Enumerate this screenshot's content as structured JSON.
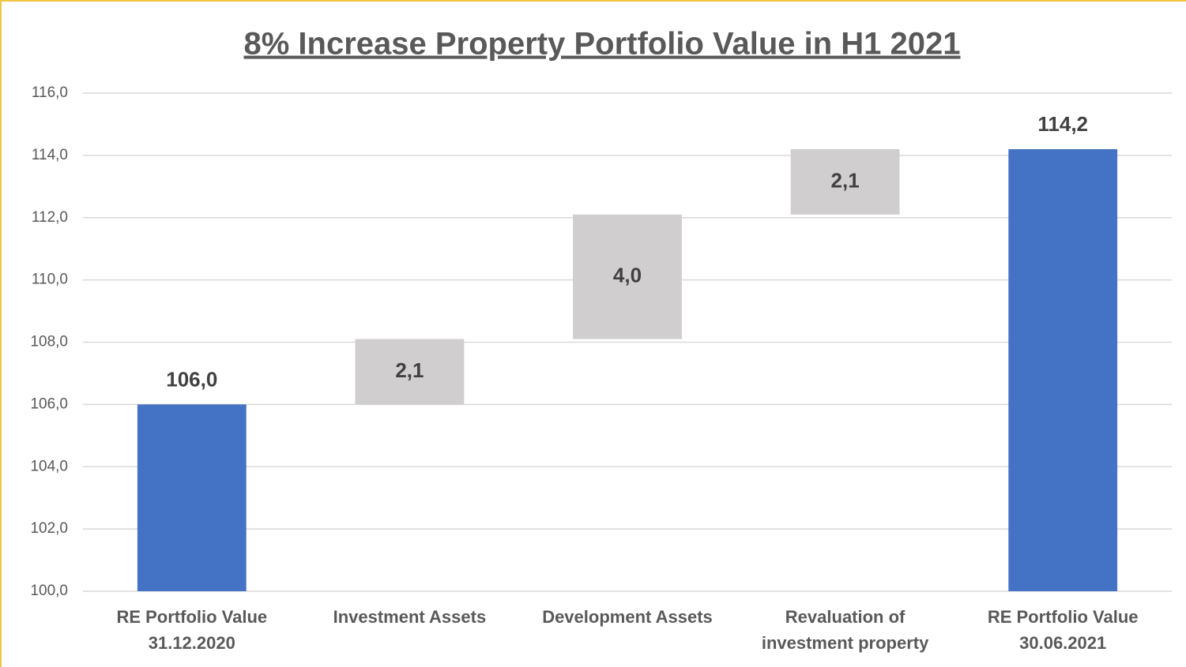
{
  "chart_data": {
    "type": "waterfall",
    "title": "8% Increase Property Portfolio Value in H1 2021",
    "categories": [
      "RE Portfolio Value 31.12.2020",
      "Investment Assets",
      "Development Assets",
      "Revaluation of investment property",
      "RE Portfolio Value 30.06.2021"
    ],
    "values": [
      106.0,
      2.1,
      4.0,
      2.1,
      114.2
    ],
    "value_labels": [
      "106,0",
      "2,1",
      "4,0",
      "2,1",
      "114,2"
    ],
    "totals": [
      true,
      false,
      false,
      false,
      true
    ],
    "total_color": "#4472c4",
    "increase_color": "#d0cece",
    "ylim": [
      100,
      116
    ],
    "yticks": [
      {
        "value": 100,
        "label": "100,0"
      },
      {
        "value": 102,
        "label": "102,0"
      },
      {
        "value": 104,
        "label": "104,0"
      },
      {
        "value": 106,
        "label": "106,0"
      },
      {
        "value": 108,
        "label": "108,0"
      },
      {
        "value": 110,
        "label": "110,0"
      },
      {
        "value": 112,
        "label": "112,0"
      },
      {
        "value": 114,
        "label": "114,0"
      },
      {
        "value": 116,
        "label": "116,0"
      }
    ],
    "grid": true
  }
}
